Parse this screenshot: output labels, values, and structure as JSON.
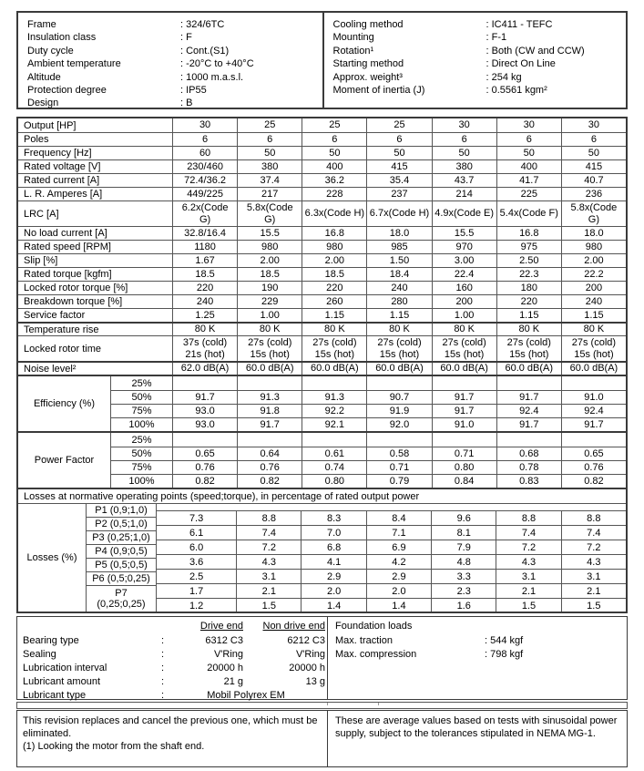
{
  "header": {
    "left": [
      {
        "label": "Frame",
        "value": ": 324/6TC"
      },
      {
        "label": "Insulation class",
        "value": ": F"
      },
      {
        "label": "Duty cycle",
        "value": ": Cont.(S1)"
      },
      {
        "label": "Ambient temperature",
        "value": ": -20°C to +40°C"
      },
      {
        "label": "Altitude",
        "value": ": 1000 m.a.s.l."
      },
      {
        "label": "Protection degree",
        "value": ": IP55"
      },
      {
        "label": "Design",
        "value": ": B"
      }
    ],
    "right": [
      {
        "label": "Cooling method",
        "value": ": IC411 - TEFC"
      },
      {
        "label": "Mounting",
        "value": ": F-1"
      },
      {
        "label": "Rotation¹",
        "value": ": Both (CW and CCW)"
      },
      {
        "label": "Starting method",
        "value": ": Direct On Line"
      },
      {
        "label": "Approx. weight³",
        "value": ": 254 kg"
      },
      {
        "label": "Moment of inertia (J)",
        "value": ": 0.5561 kgm²"
      }
    ]
  },
  "table": {
    "rows": [
      {
        "label": "Output [HP]",
        "values": [
          "30",
          "25",
          "25",
          "25",
          "30",
          "30",
          "30"
        ]
      },
      {
        "label": "Poles",
        "values": [
          "6",
          "6",
          "6",
          "6",
          "6",
          "6",
          "6"
        ]
      },
      {
        "label": "Frequency [Hz]",
        "values": [
          "60",
          "50",
          "50",
          "50",
          "50",
          "50",
          "50"
        ]
      },
      {
        "label": "Rated voltage [V]",
        "values": [
          "230/460",
          "380",
          "400",
          "415",
          "380",
          "400",
          "415"
        ]
      },
      {
        "label": "Rated current [A]",
        "values": [
          "72.4/36.2",
          "37.4",
          "36.2",
          "35.4",
          "43.7",
          "41.7",
          "40.7"
        ]
      },
      {
        "label": "L. R. Amperes [A]",
        "values": [
          "449/225",
          "217",
          "228",
          "237",
          "214",
          "225",
          "236"
        ]
      },
      {
        "label": "LRC [A]",
        "tall": true,
        "values": [
          "6.2x(Code\nG)",
          "5.8x(Code\nG)",
          "6.3x(Code H)",
          "6.7x(Code H)",
          "4.9x(Code E)",
          "5.4x(Code F)",
          "5.8x(Code\nG)"
        ]
      },
      {
        "label": "No load current [A]",
        "values": [
          "32.8/16.4",
          "15.5",
          "16.8",
          "18.0",
          "15.5",
          "16.8",
          "18.0"
        ]
      },
      {
        "label": "Rated speed [RPM]",
        "values": [
          "1180",
          "980",
          "980",
          "985",
          "970",
          "975",
          "980"
        ]
      },
      {
        "label": "Slip [%]",
        "values": [
          "1.67",
          "2.00",
          "2.00",
          "1.50",
          "3.00",
          "2.50",
          "2.00"
        ]
      },
      {
        "label": "Rated torque [kgfm]",
        "values": [
          "18.5",
          "18.5",
          "18.5",
          "18.4",
          "22.4",
          "22.3",
          "22.2"
        ]
      },
      {
        "label": "Locked rotor torque [%]",
        "values": [
          "220",
          "190",
          "220",
          "240",
          "160",
          "180",
          "200"
        ]
      },
      {
        "label": "Breakdown torque [%]",
        "values": [
          "240",
          "229",
          "260",
          "280",
          "200",
          "220",
          "240"
        ]
      },
      {
        "label": "Service factor",
        "values": [
          "1.25",
          "1.00",
          "1.15",
          "1.15",
          "1.00",
          "1.15",
          "1.15"
        ]
      },
      {
        "label": "Temperature rise",
        "thick": true,
        "values": [
          "80 K",
          "80 K",
          "80 K",
          "80 K",
          "80 K",
          "80 K",
          "80 K"
        ]
      },
      {
        "label": "Locked rotor time",
        "tall": true,
        "values": [
          "37s (cold)\n21s (hot)",
          "27s (cold)\n15s (hot)",
          "27s (cold)\n15s (hot)",
          "27s (cold)\n15s (hot)",
          "27s (cold)\n15s (hot)",
          "27s (cold)\n15s (hot)",
          "27s (cold)\n15s (hot)"
        ]
      },
      {
        "label": "Noise level²",
        "thick": true,
        "values": [
          "62.0 dB(A)",
          "60.0 dB(A)",
          "60.0 dB(A)",
          "60.0 dB(A)",
          "60.0 dB(A)",
          "60.0 dB(A)",
          "60.0 dB(A)"
        ]
      }
    ],
    "efficiency": {
      "label": "Efficiency (%)",
      "rows": [
        {
          "pct": "25%",
          "values": [
            "",
            "",
            "",
            "",
            "",
            "",
            ""
          ]
        },
        {
          "pct": "50%",
          "values": [
            "91.7",
            "91.3",
            "91.3",
            "90.7",
            "91.7",
            "91.7",
            "91.0"
          ]
        },
        {
          "pct": "75%",
          "values": [
            "93.0",
            "91.8",
            "92.2",
            "91.9",
            "91.7",
            "92.4",
            "92.4"
          ]
        },
        {
          "pct": "100%",
          "values": [
            "93.0",
            "91.7",
            "92.1",
            "92.0",
            "91.0",
            "91.7",
            "91.7"
          ]
        }
      ]
    },
    "power_factor": {
      "label": "Power Factor",
      "rows": [
        {
          "pct": "25%",
          "values": [
            "",
            "",
            "",
            "",
            "",
            "",
            ""
          ]
        },
        {
          "pct": "50%",
          "values": [
            "0.65",
            "0.64",
            "0.61",
            "0.58",
            "0.71",
            "0.68",
            "0.65"
          ]
        },
        {
          "pct": "75%",
          "values": [
            "0.76",
            "0.76",
            "0.74",
            "0.71",
            "0.80",
            "0.78",
            "0.76"
          ]
        },
        {
          "pct": "100%",
          "values": [
            "0.82",
            "0.82",
            "0.80",
            "0.79",
            "0.84",
            "0.83",
            "0.82"
          ]
        }
      ]
    },
    "losses": {
      "title": "Losses at normative operating points (speed;torque), in percentage of rated output power",
      "label": "Losses (%)",
      "rows": [
        {
          "label": "P1 (0,9;1,0)",
          "values": [
            "7.3",
            "8.8",
            "8.3",
            "8.4",
            "9.6",
            "8.8",
            "8.8"
          ]
        },
        {
          "label": "P2 (0,5;1,0)",
          "values": [
            "6.1",
            "7.4",
            "7.0",
            "7.1",
            "8.1",
            "7.4",
            "7.4"
          ]
        },
        {
          "label": "P3 (0,25;1,0)",
          "values": [
            "6.0",
            "7.2",
            "6.8",
            "6.9",
            "7.9",
            "7.2",
            "7.2"
          ]
        },
        {
          "label": "P4 (0,9;0,5)",
          "values": [
            "3.6",
            "4.3",
            "4.1",
            "4.2",
            "4.8",
            "4.3",
            "4.3"
          ]
        },
        {
          "label": "P5 (0,5;0,5)",
          "values": [
            "2.5",
            "3.1",
            "2.9",
            "2.9",
            "3.3",
            "3.1",
            "3.1"
          ]
        },
        {
          "label": "P6 (0,5;0,25)",
          "values": [
            "1.7",
            "2.1",
            "2.0",
            "2.0",
            "2.3",
            "2.1",
            "2.1"
          ]
        },
        {
          "label": "P7\n(0,25;0,25)",
          "tall": true,
          "values": [
            "1.2",
            "1.5",
            "1.4",
            "1.4",
            "1.6",
            "1.5",
            "1.5"
          ]
        }
      ]
    }
  },
  "bearings": {
    "col_drive_end": "Drive end",
    "col_non_drive_end": "Non drive end",
    "sep": ":",
    "rows": [
      {
        "label": "Bearing type",
        "de": "6312 C3",
        "nde": "6212 C3"
      },
      {
        "label": "Sealing",
        "de": "V'Ring",
        "nde": "V'Ring"
      },
      {
        "label": "Lubrication interval",
        "de": "20000 h",
        "nde": "20000 h"
      },
      {
        "label": "Lubricant amount",
        "de": "21 g",
        "nde": "13 g"
      }
    ],
    "span_row": {
      "label": "Lubricant type",
      "value": "Mobil Polyrex EM"
    }
  },
  "foundation": {
    "title": "Foundation loads",
    "rows": [
      {
        "label": "Max. traction",
        "value": ": 544 kgf"
      },
      {
        "label": "Max. compression",
        "value": ": 798 kgf"
      }
    ]
  },
  "notes": {
    "left_line1": "This revision replaces and cancel the previous one, which must be eliminated.",
    "left_line2": "(1) Looking the motor from the shaft end.",
    "right": "These are average values based on tests with sinusoidal power supply, subject to the tolerances stipulated in NEMA MG-1."
  }
}
